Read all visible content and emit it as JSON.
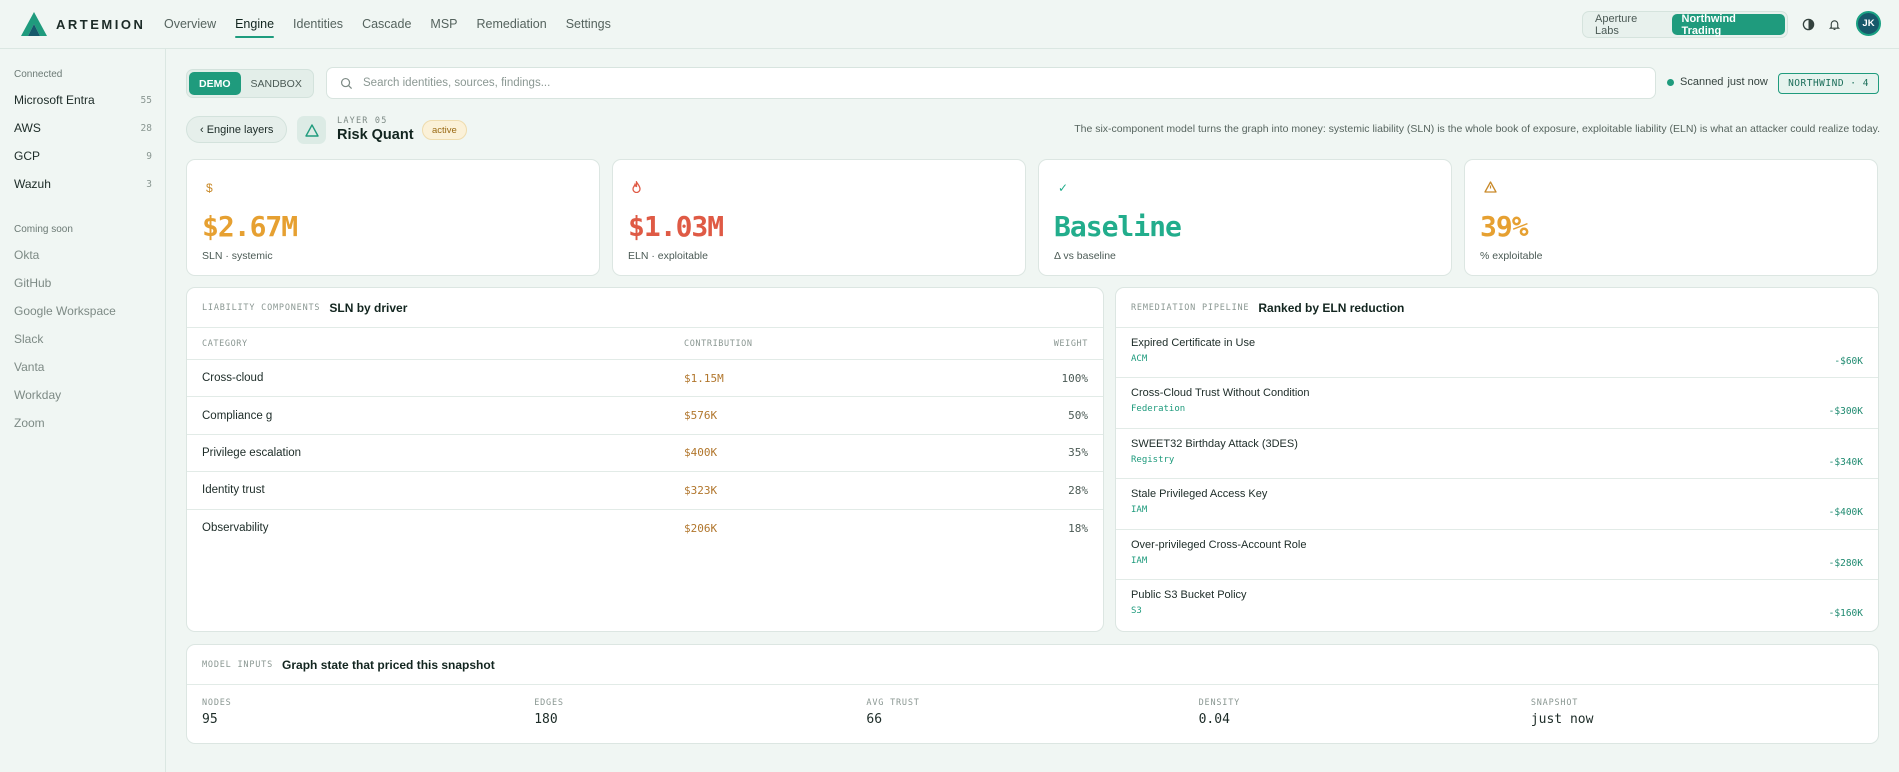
{
  "app": {
    "name": "ARTEMION"
  },
  "nav": [
    {
      "label": "Overview"
    },
    {
      "label": "Engine",
      "active": true
    },
    {
      "label": "Identities"
    },
    {
      "label": "Cascade"
    },
    {
      "label": "MSP"
    },
    {
      "label": "Remediation"
    },
    {
      "label": "Settings"
    }
  ],
  "tenants": [
    "Aperture Labs",
    "Northwind Trading"
  ],
  "active_tenant": "Northwind Trading",
  "user": {
    "initials": "JK"
  },
  "icons": {
    "theme": "contrast-icon",
    "notifications": "bell-icon",
    "search": "search-icon"
  },
  "sidebar": {
    "connected_heading": "Connected",
    "connected": [
      {
        "label": "Microsoft Entra",
        "count": "55"
      },
      {
        "label": "AWS",
        "count": "28"
      },
      {
        "label": "GCP",
        "count": "9"
      },
      {
        "label": "Wazuh",
        "count": "3"
      }
    ],
    "soon_heading": "Coming soon",
    "soon": [
      {
        "label": "Okta"
      },
      {
        "label": "GitHub"
      },
      {
        "label": "Google Workspace"
      },
      {
        "label": "Slack"
      },
      {
        "label": "Vanta"
      },
      {
        "label": "Workday"
      },
      {
        "label": "Zoom"
      }
    ]
  },
  "mode": {
    "options": [
      "DEMO",
      "SANDBOX"
    ],
    "selected": "DEMO"
  },
  "search": {
    "placeholder": "Search identities, sources, findings...",
    "value": ""
  },
  "scan": {
    "label": "Scanned",
    "when": "just now"
  },
  "tenant_tag": "NORTHWIND · 4",
  "layer": {
    "back_label": "‹ Engine layers",
    "kicker": "LAYER 05",
    "title": "Risk Quant",
    "status": "active",
    "description": "The six-component model turns the graph into money: systemic liability (SLN) is the whole book of exposure, exploitable liability (ELN) is what an attacker could realize today."
  },
  "kpis": [
    {
      "icon": "$",
      "icon_name": "dollar-icon",
      "value": "$2.67M",
      "label": "SLN · systemic",
      "color": "#e6a031"
    },
    {
      "icon": "🔥",
      "icon_name": "flame-icon",
      "value": "$1.03M",
      "label": "ELN · exploitable",
      "color": "#df5a45"
    },
    {
      "icon": "✓",
      "icon_name": "check-icon",
      "value": "Baseline",
      "label": "Δ vs baseline",
      "color": "#22ad8c"
    },
    {
      "icon": "⚠",
      "icon_name": "warning-icon",
      "value": "39%",
      "label": "% exploitable",
      "color": "#e6a031"
    }
  ],
  "liability": {
    "kicker": "LIABILITY COMPONENTS",
    "title": "SLN by driver",
    "columns": [
      "CATEGORY",
      "CONTRIBUTION",
      "WEIGHT"
    ],
    "rows": [
      {
        "category": "Cross-cloud",
        "contribution": "$1.15M",
        "weight": "100%"
      },
      {
        "category": "Compliance g",
        "contribution": "$576K",
        "weight": "50%"
      },
      {
        "category": "Privilege escalation",
        "contribution": "$400K",
        "weight": "35%"
      },
      {
        "category": "Identity trust",
        "contribution": "$323K",
        "weight": "28%"
      },
      {
        "category": "Observability",
        "contribution": "$206K",
        "weight": "18%"
      }
    ]
  },
  "remediation": {
    "kicker": "REMEDIATION PIPELINE",
    "title": "Ranked by ELN reduction",
    "items": [
      {
        "title": "Expired Certificate in Use",
        "tag": "ACM",
        "delta": "-$60K"
      },
      {
        "title": "Cross-Cloud Trust Without Condition",
        "tag": "Federation",
        "delta": "-$300K"
      },
      {
        "title": "SWEET32 Birthday Attack (3DES)",
        "tag": "Registry",
        "delta": "-$340K"
      },
      {
        "title": "Stale Privileged Access Key",
        "tag": "IAM",
        "delta": "-$400K"
      },
      {
        "title": "Over-privileged Cross-Account Role",
        "tag": "IAM",
        "delta": "-$280K"
      },
      {
        "title": "Public S3 Bucket Policy",
        "tag": "S3",
        "delta": "-$160K"
      }
    ]
  },
  "model_inputs": {
    "kicker": "MODEL INPUTS",
    "title": "Graph state that priced this snapshot",
    "items": [
      {
        "label": "NODES",
        "value": "95"
      },
      {
        "label": "EDGES",
        "value": "180"
      },
      {
        "label": "AVG TRUST",
        "value": "66"
      },
      {
        "label": "DENSITY",
        "value": "0.04"
      },
      {
        "label": "SNAPSHOT",
        "value": "just now"
      }
    ]
  }
}
